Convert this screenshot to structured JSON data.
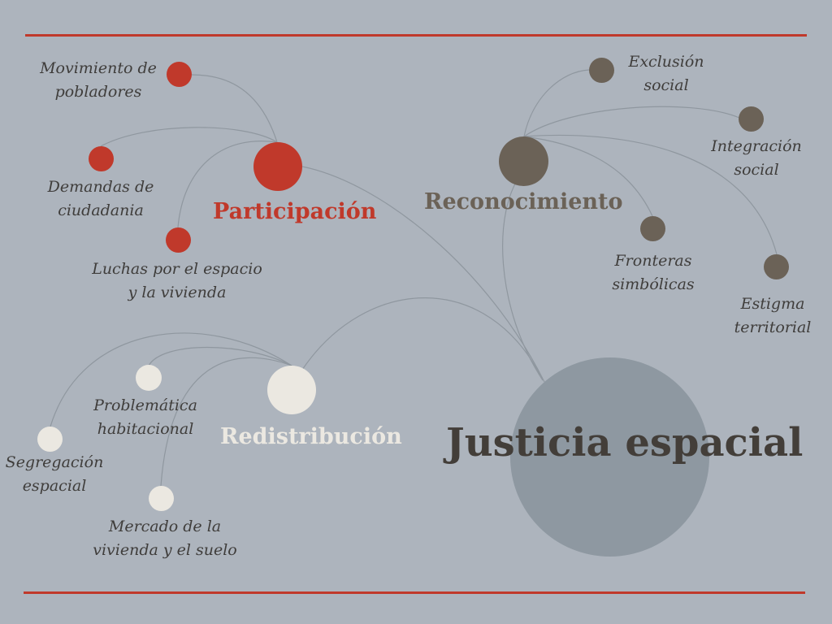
{
  "colors": {
    "background": "#adb4bd",
    "rule": "#c0392b",
    "participacion": "#c0392b",
    "reconocimiento": "#6b6257",
    "redistribucion": "#ebe8e1",
    "justicia": "#8e98a1",
    "edge": "#8f979f",
    "label_text": "#3f3d3b",
    "center_text": "#433e39"
  },
  "center": {
    "title": "Justicia espacial"
  },
  "groups": {
    "participacion": {
      "title": "Participación",
      "items": [
        {
          "line1": "Movimiento de",
          "line2": "pobladores"
        },
        {
          "line1": "Demandas de",
          "line2": "ciudadania"
        },
        {
          "line1": "Luchas por el espacio",
          "line2": "y la vivienda"
        }
      ]
    },
    "reconocimiento": {
      "title": "Reconocimiento",
      "items": [
        {
          "line1": "Exclusión",
          "line2": "social"
        },
        {
          "line1": "Integración",
          "line2": "social"
        },
        {
          "line1": "Fronteras",
          "line2": "simbólicas"
        },
        {
          "line1": "Estigma",
          "line2": "territorial"
        }
      ]
    },
    "redistribucion": {
      "title": "Redistribución",
      "items": [
        {
          "line1": "Problemática",
          "line2": "habitacional"
        },
        {
          "line1": "Segregación",
          "line2": "espacial"
        },
        {
          "line1": "Mercado de la",
          "line2": "vivienda y el suelo"
        }
      ]
    }
  }
}
